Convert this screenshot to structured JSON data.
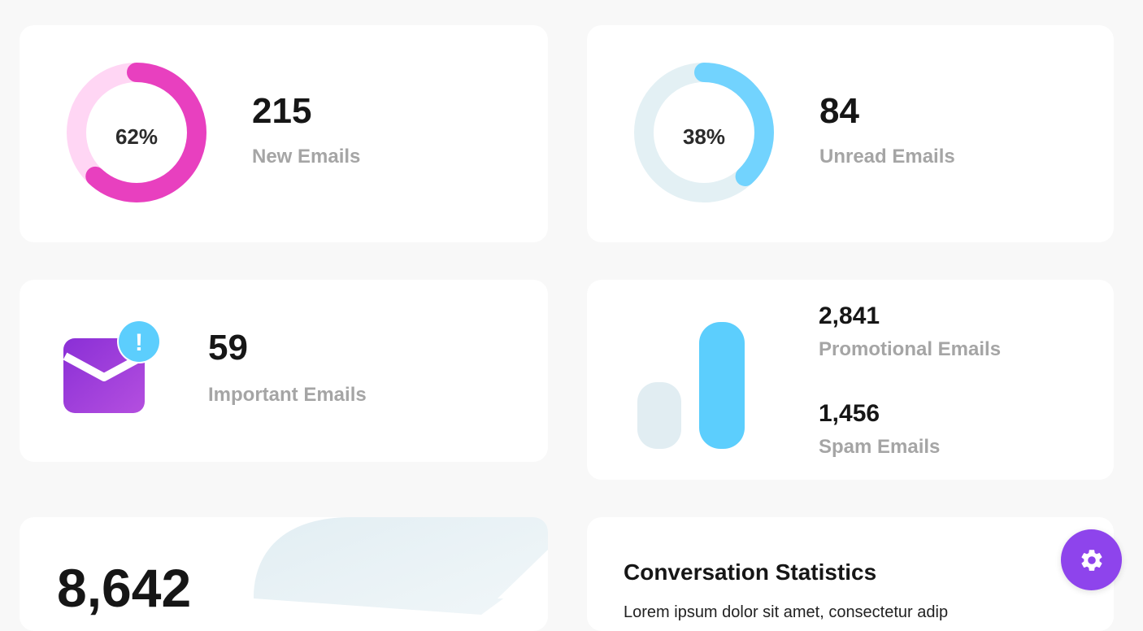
{
  "cards": {
    "new_emails": {
      "value": "215",
      "label": "New Emails",
      "percent_label": "62%",
      "percent": 62,
      "color": "#e840bf",
      "track_color": "#ffd6f4"
    },
    "unread_emails": {
      "value": "84",
      "label": "Unread Emails",
      "percent_label": "38%",
      "percent": 38,
      "color": "#72d3fe",
      "track_color": "#e3f0f4"
    },
    "important_emails": {
      "value": "59",
      "label": "Important Emails",
      "icon": "mail-alert-icon",
      "badge": "!",
      "icon_color": "#9b39dc",
      "badge_color": "#5ccefd"
    },
    "promo_spam": {
      "promotional": {
        "value": "2,841",
        "label": "Promotional Emails"
      },
      "spam": {
        "value": "1,456",
        "label": "Spam Emails"
      },
      "bar_colors": [
        "#e1edf2",
        "#5ccefd"
      ]
    },
    "total": {
      "value": "8,642"
    },
    "conversation": {
      "title": "Conversation Statistics",
      "text": "Lorem ipsum dolor sit amet, consectetur adip"
    }
  },
  "settings_button": {
    "icon": "gear-icon",
    "color": "#8e44ec"
  }
}
